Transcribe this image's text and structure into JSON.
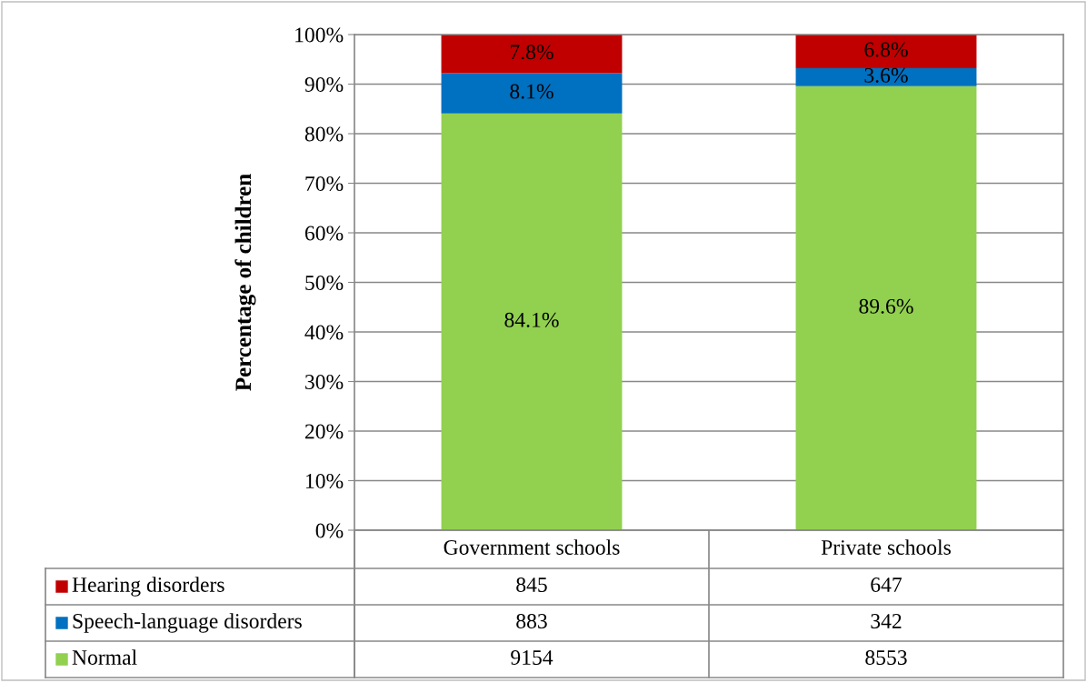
{
  "chart_data": {
    "type": "bar",
    "stacked": true,
    "ylabel": "Percentage of children",
    "categories": [
      "Government schools",
      "Private schools"
    ],
    "series": [
      {
        "name": "Normal",
        "color": "#92d050",
        "values": [
          84.1,
          89.6
        ],
        "value_labels": [
          "84.1%",
          "89.6%"
        ]
      },
      {
        "name": "Speech-language disorders",
        "color": "#0070c0",
        "values": [
          8.1,
          3.6
        ],
        "value_labels": [
          "8.1%",
          "3.6%"
        ]
      },
      {
        "name": "Hearing disorders",
        "color": "#c00000",
        "values": [
          7.8,
          6.8
        ],
        "value_labels": [
          "7.8%",
          "6.8%"
        ]
      }
    ],
    "ylim": [
      0,
      100
    ],
    "yticks": [
      {
        "value": 0,
        "label": "0%"
      },
      {
        "value": 10,
        "label": "10%"
      },
      {
        "value": 20,
        "label": "20%"
      },
      {
        "value": 30,
        "label": "30%"
      },
      {
        "value": 40,
        "label": "40%"
      },
      {
        "value": 50,
        "label": "50%"
      },
      {
        "value": 60,
        "label": "60%"
      },
      {
        "value": 70,
        "label": "70%"
      },
      {
        "value": 80,
        "label": "80%"
      },
      {
        "value": 90,
        "label": "90%"
      },
      {
        "value": 100,
        "label": "100%"
      }
    ],
    "grid": "y",
    "legend": "bottom",
    "annotations": [
      "845",
      "647",
      "883",
      "342",
      "9154",
      "8553"
    ]
  }
}
